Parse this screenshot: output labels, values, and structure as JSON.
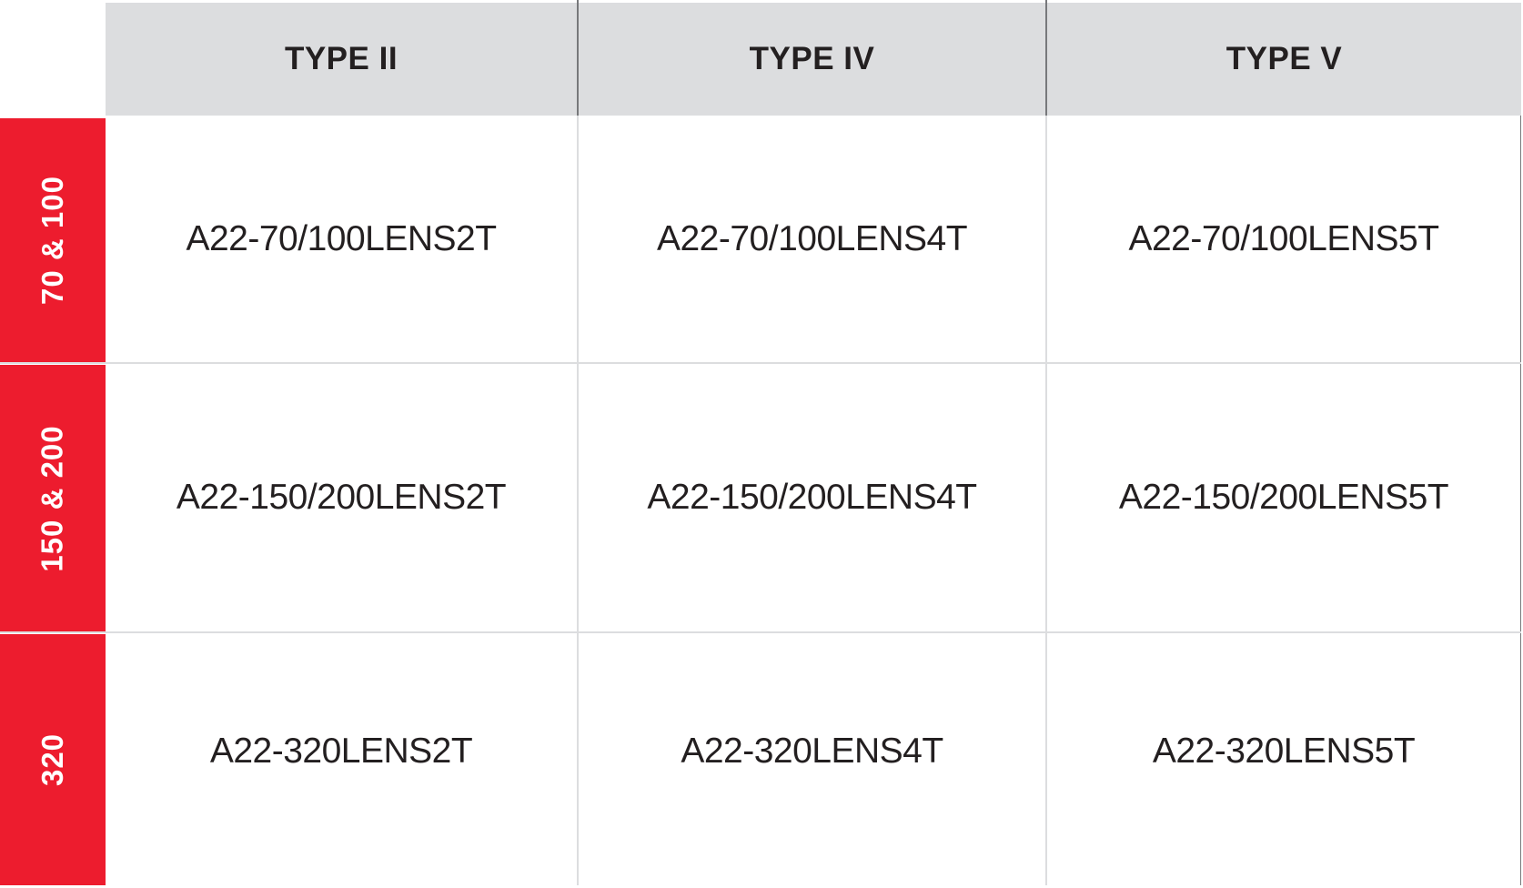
{
  "columns": [
    "TYPE II",
    "TYPE IV",
    "TYPE V"
  ],
  "rows": [
    {
      "label": "70 & 100",
      "cells": [
        "A22-70/100LENS2T",
        "A22-70/100LENS4T",
        "A22-70/100LENS5T"
      ]
    },
    {
      "label": "150 & 200",
      "cells": [
        "A22-150/200LENS2T",
        "A22-150/200LENS4T",
        "A22-150/200LENS5T"
      ]
    },
    {
      "label": "320",
      "cells": [
        "A22-320LENS2T",
        "A22-320LENS4T",
        "A22-320LENS5T"
      ]
    }
  ],
  "colors": {
    "header_bg": "#dcdddf",
    "row_label_bg": "#ed1c2e",
    "grid": "#dcdddf"
  }
}
